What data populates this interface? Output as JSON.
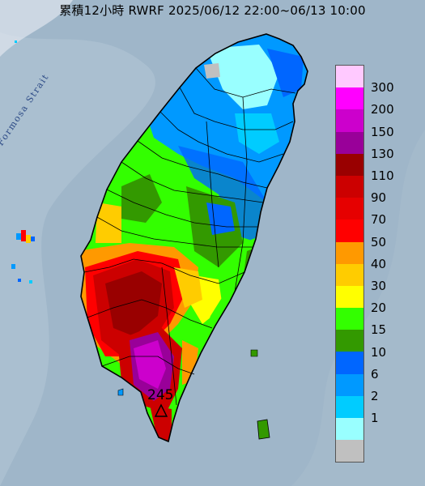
{
  "title": "累積12小時 RWRF 2025/06/12 22:00~06/13 10:00",
  "sea_label": "Formosa Strait",
  "peak_value": "245",
  "peak_marker_icon": "triangle-marker-icon",
  "colors": {
    "sea": "#9fb6c9",
    "land_outline": "#000000"
  },
  "legend": {
    "swatches": [
      {
        "color": "#ffc9ff"
      },
      {
        "color": "#ff00ff"
      },
      {
        "color": "#cc00cc"
      },
      {
        "color": "#990099"
      },
      {
        "color": "#990000"
      },
      {
        "color": "#cc0000"
      },
      {
        "color": "#e60000"
      },
      {
        "color": "#ff0000"
      },
      {
        "color": "#ff9900"
      },
      {
        "color": "#ffcc00"
      },
      {
        "color": "#ffff00"
      },
      {
        "color": "#33ff00"
      },
      {
        "color": "#339900"
      },
      {
        "color": "#0066ff"
      },
      {
        "color": "#0099ff"
      },
      {
        "color": "#00ccff"
      },
      {
        "color": "#99ffff"
      },
      {
        "color": "#c0c0c0"
      }
    ],
    "labels": [
      "300",
      "200",
      "150",
      "130",
      "110",
      "90",
      "70",
      "50",
      "40",
      "30",
      "20",
      "15",
      "10",
      "6",
      "2",
      "1"
    ]
  }
}
